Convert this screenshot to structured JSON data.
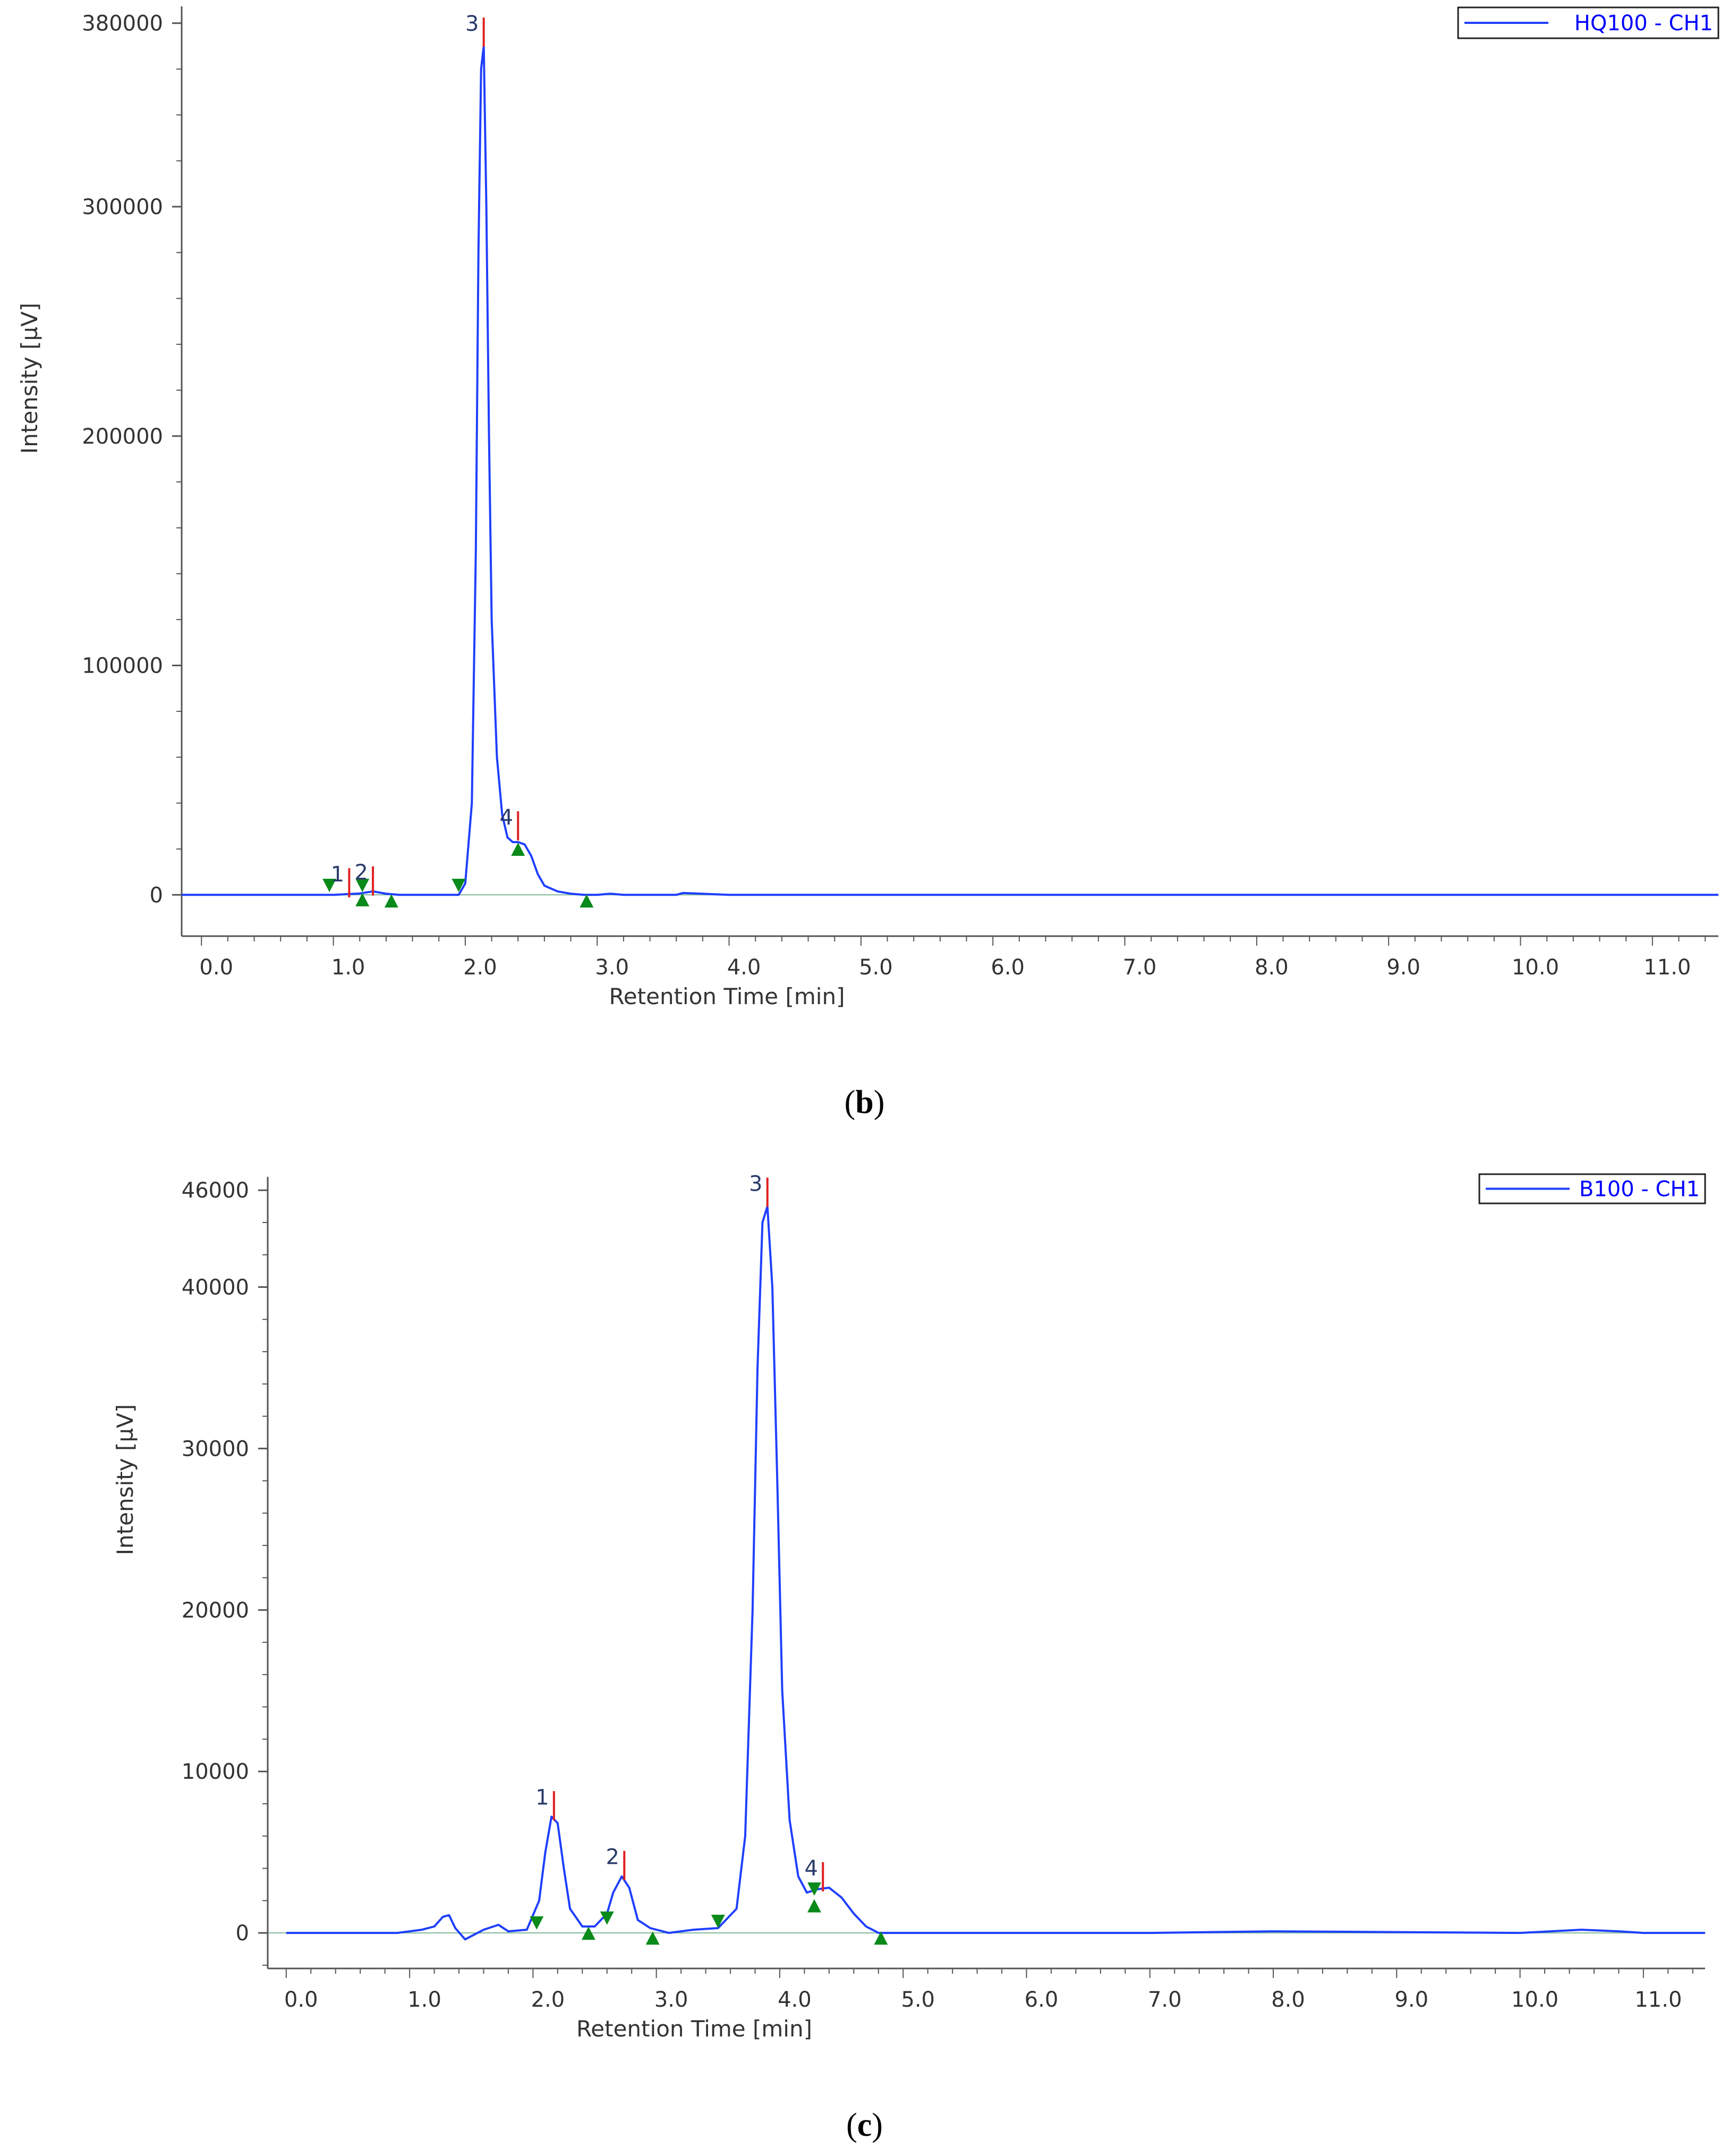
{
  "chart_data": [
    {
      "type": "line",
      "caption": "b",
      "legend": "HQ100 - CH1",
      "legend_position": "top-right",
      "xlabel": "Retention Time [min]",
      "ylabel": "Intensity [µV]",
      "xlim": [
        -0.15,
        11.5
      ],
      "ylim": [
        -18000,
        385000
      ],
      "x_ticks": [
        "0.0",
        "1.0",
        "2.0",
        "3.0",
        "4.0",
        "5.0",
        "6.0",
        "7.0",
        "8.0",
        "9.0",
        "10.0",
        "11.0"
      ],
      "y_ticks": [
        "0",
        "100000",
        "200000",
        "300000",
        "380000"
      ],
      "y_tick_values": [
        0,
        100000,
        200000,
        300000,
        380000
      ],
      "series_color": "#1f3fff",
      "series": [
        {
          "x": [
            -0.15,
            0.9,
            1.0,
            1.1,
            1.2,
            1.3,
            1.4,
            1.5,
            1.8,
            1.95,
            2.0,
            2.05,
            2.08,
            2.1,
            2.12,
            2.14,
            2.16,
            2.18,
            2.2,
            2.24,
            2.28,
            2.32,
            2.36,
            2.4,
            2.45,
            2.5,
            2.55,
            2.6,
            2.7,
            2.8,
            2.9,
            3.0,
            3.1,
            3.2,
            3.6,
            3.65,
            4.0,
            6.0,
            8.0,
            10.0,
            11.5
          ],
          "y": [
            0,
            0,
            0,
            300,
            600,
            1500,
            500,
            0,
            0,
            0,
            5000,
            40000,
            150000,
            280000,
            360000,
            370000,
            300000,
            200000,
            120000,
            60000,
            35000,
            25000,
            23000,
            23000,
            22000,
            17000,
            9000,
            4000,
            1500,
            500,
            0,
            0,
            500,
            0,
            0,
            800,
            0,
            0,
            0,
            0,
            0
          ]
        }
      ],
      "peaks": [
        {
          "label": "1",
          "x": 1.12,
          "y": 1200
        },
        {
          "label": "2",
          "x": 1.3,
          "y": 2000
        },
        {
          "label": "3",
          "x": 2.14,
          "y": 372000
        },
        {
          "label": "4",
          "x": 2.4,
          "y": 26000
        }
      ],
      "markers": [
        {
          "type": "start",
          "x": 0.97,
          "y": 4000
        },
        {
          "type": "start",
          "x": 1.22,
          "y": 4000
        },
        {
          "type": "end",
          "x": 1.22,
          "y": -2000
        },
        {
          "type": "end",
          "x": 1.44,
          "y": -2500
        },
        {
          "type": "start",
          "x": 1.95,
          "y": 4000
        },
        {
          "type": "end",
          "x": 2.4,
          "y": 20000
        },
        {
          "type": "end",
          "x": 2.92,
          "y": -2500
        }
      ]
    },
    {
      "type": "line",
      "caption": "c",
      "legend": "B100 - CH1",
      "legend_position": "top-right",
      "xlabel": "Retention Time [min]",
      "ylabel": "Intensity [µV]",
      "xlim": [
        -0.15,
        11.5
      ],
      "ylim": [
        -2200,
        46500
      ],
      "x_ticks": [
        "0.0",
        "1.0",
        "2.0",
        "3.0",
        "4.0",
        "5.0",
        "6.0",
        "7.0",
        "8.0",
        "9.0",
        "10.0",
        "11.0"
      ],
      "y_ticks": [
        "0",
        "10000",
        "20000",
        "30000",
        "40000",
        "46000"
      ],
      "y_tick_values": [
        0,
        10000,
        20000,
        30000,
        40000,
        46000
      ],
      "series_color": "#1f3fff",
      "series": [
        {
          "x": [
            0.0,
            0.3,
            0.9,
            1.1,
            1.2,
            1.27,
            1.32,
            1.37,
            1.45,
            1.5,
            1.6,
            1.72,
            1.8,
            1.95,
            2.05,
            2.1,
            2.15,
            2.2,
            2.25,
            2.3,
            2.4,
            2.5,
            2.6,
            2.65,
            2.72,
            2.78,
            2.85,
            2.95,
            3.1,
            3.3,
            3.5,
            3.65,
            3.72,
            3.78,
            3.82,
            3.86,
            3.9,
            3.94,
            3.98,
            4.02,
            4.08,
            4.15,
            4.22,
            4.3,
            4.4,
            4.5,
            4.6,
            4.7,
            4.8,
            5.0,
            7.0,
            8.0,
            10.0,
            10.5,
            10.8,
            11.0,
            11.5
          ],
          "y": [
            0,
            0,
            0,
            200,
            400,
            1000,
            1100,
            300,
            -400,
            -200,
            200,
            500,
            100,
            200,
            2000,
            5000,
            7200,
            6800,
            4000,
            1500,
            400,
            400,
            1200,
            2500,
            3500,
            2800,
            800,
            300,
            0,
            200,
            300,
            1500,
            6000,
            20000,
            35000,
            44000,
            45000,
            40000,
            28000,
            15000,
            7000,
            3500,
            2500,
            2700,
            2800,
            2200,
            1200,
            400,
            0,
            0,
            0,
            100,
            0,
            200,
            100,
            0,
            0
          ]
        }
      ],
      "peaks": [
        {
          "label": "1",
          "x": 2.17,
          "y": 7300
        },
        {
          "label": "2",
          "x": 2.74,
          "y": 3600
        },
        {
          "label": "3",
          "x": 3.9,
          "y": 45300
        },
        {
          "label": "4",
          "x": 4.35,
          "y": 2900
        }
      ],
      "markers": [
        {
          "type": "start",
          "x": 2.03,
          "y": 600
        },
        {
          "type": "end",
          "x": 2.45,
          "y": 0
        },
        {
          "type": "start",
          "x": 2.6,
          "y": 900
        },
        {
          "type": "end",
          "x": 2.97,
          "y": -300
        },
        {
          "type": "start",
          "x": 3.5,
          "y": 700
        },
        {
          "type": "start",
          "x": 4.28,
          "y": 2700
        },
        {
          "type": "end",
          "x": 4.28,
          "y": 1700
        },
        {
          "type": "end",
          "x": 4.82,
          "y": -300
        }
      ]
    }
  ]
}
